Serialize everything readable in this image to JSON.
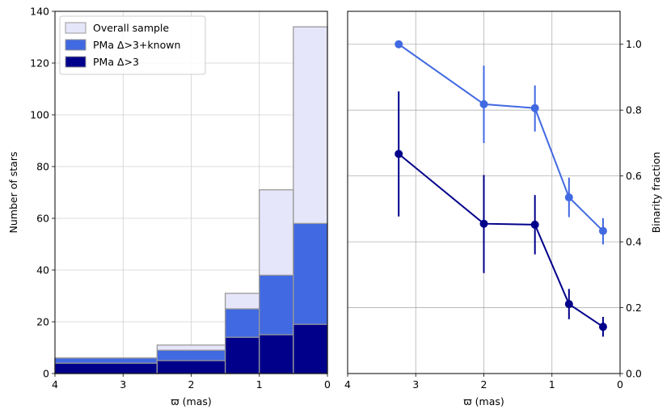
{
  "chart_data": [
    {
      "type": "bar",
      "subtype": "stacked-histogram",
      "title": "",
      "xlabel": "ϖ (mas)",
      "ylabel": "Number of stars",
      "xlim": [
        4,
        0
      ],
      "ylim": [
        0,
        140
      ],
      "x_reversed": true,
      "xticks": [
        "4",
        "3",
        "2",
        "1",
        "0"
      ],
      "yticks": [
        "0",
        "20",
        "40",
        "60",
        "80",
        "100",
        "120",
        "140"
      ],
      "grid": true,
      "legend_position": "top-left",
      "bin_edges": [
        4.0,
        2.5,
        1.5,
        1.0,
        0.5,
        0.0
      ],
      "series": [
        {
          "name": "Overall sample",
          "color": "#e6e6fa",
          "edgecolor": "#999999",
          "values": [
            6,
            11,
            31,
            71,
            134
          ]
        },
        {
          "name": "PMa Δ>3+known",
          "color": "#4169e1",
          "edgecolor": "#999999",
          "values": [
            6,
            9,
            25,
            38,
            58
          ]
        },
        {
          "name": "PMa Δ>3",
          "color": "#00008b",
          "edgecolor": "#999999",
          "values": [
            4,
            5,
            14,
            15,
            19
          ]
        }
      ]
    },
    {
      "type": "line",
      "subtype": "errorbar",
      "title": "",
      "xlabel": "ϖ (mas)",
      "ylabel": "Binarity fraction",
      "xlim": [
        4,
        0
      ],
      "ylim": [
        0,
        1.1
      ],
      "x_reversed": true,
      "y_axis_side": "right",
      "xticks": [
        "4",
        "3",
        "2",
        "1",
        "0"
      ],
      "yticks": [
        "0.0",
        "0.2",
        "0.4",
        "0.6",
        "0.8",
        "1.0"
      ],
      "grid": true,
      "series": [
        {
          "color": "#4169e1",
          "x": [
            3.25,
            2.0,
            1.25,
            0.75,
            0.25
          ],
          "y": [
            1.0,
            0.818,
            0.806,
            0.535,
            0.433
          ],
          "err_low": [
            1.0,
            0.7,
            0.735,
            0.475,
            0.392
          ],
          "err_high": [
            1.0,
            0.935,
            0.875,
            0.595,
            0.472
          ]
        },
        {
          "color": "#00008b",
          "x": [
            3.25,
            2.0,
            1.25,
            0.75,
            0.25
          ],
          "y": [
            0.667,
            0.455,
            0.452,
            0.211,
            0.142
          ],
          "err_low": [
            0.477,
            0.305,
            0.362,
            0.165,
            0.112
          ],
          "err_high": [
            0.857,
            0.603,
            0.542,
            0.257,
            0.172
          ]
        }
      ]
    }
  ]
}
